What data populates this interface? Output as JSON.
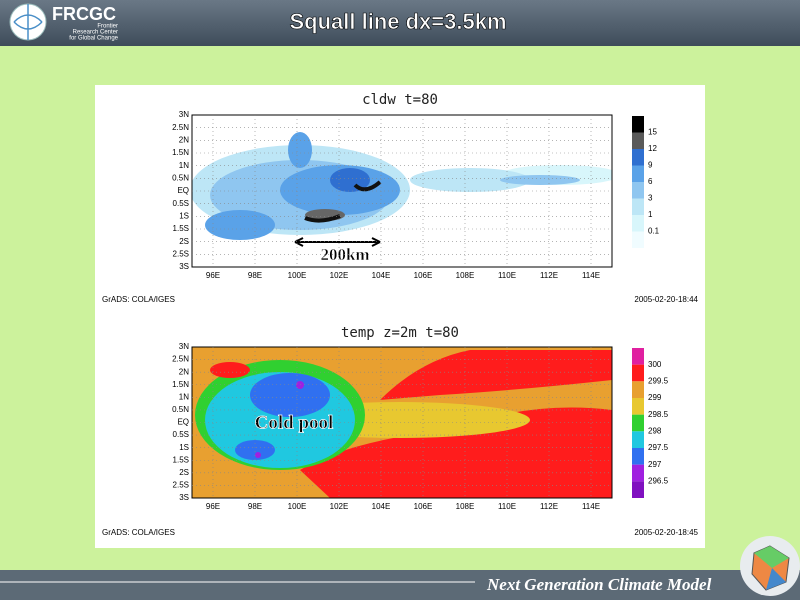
{
  "header": {
    "logo": "FRCGC",
    "org_lines": [
      "Frontier",
      "Research Center",
      "for Global Change"
    ],
    "title": "Squall line  dx=3.5km"
  },
  "panels": [
    {
      "title": "cldw  t=80",
      "y_labels": [
        "3N",
        "2.5N",
        "2N",
        "1.5N",
        "1N",
        "0.5N",
        "EQ",
        "0.5S",
        "1S",
        "1.5S",
        "2S",
        "2.5S",
        "3S"
      ],
      "x_labels": [
        "96E",
        "98E",
        "100E",
        "102E",
        "104E",
        "106E",
        "108E",
        "110E",
        "112E",
        "114E"
      ],
      "colorbar_labels": [
        "15",
        "12",
        "9",
        "6",
        "3",
        "1",
        "0.1"
      ],
      "annotation": "200km",
      "credit": "GrADS: COLA/IGES",
      "timestamp": "2005-02-20-18:44"
    },
    {
      "title": "temp z=2m  t=80",
      "y_labels": [
        "3N",
        "2.5N",
        "2N",
        "1.5N",
        "1N",
        "0.5N",
        "EQ",
        "0.5S",
        "1S",
        "1.5S",
        "2S",
        "2.5S",
        "3S"
      ],
      "x_labels": [
        "96E",
        "98E",
        "100E",
        "102E",
        "104E",
        "106E",
        "108E",
        "110E",
        "112E",
        "114E"
      ],
      "colorbar_labels": [
        "300",
        "299.5",
        "299",
        "298.5",
        "298",
        "297.5",
        "297",
        "296.5"
      ],
      "annotation": "Cold pool",
      "credit": "GrADS: COLA/IGES",
      "timestamp": "2005-02-20-18:45"
    }
  ],
  "footer": "Next Generation Climate Model"
}
